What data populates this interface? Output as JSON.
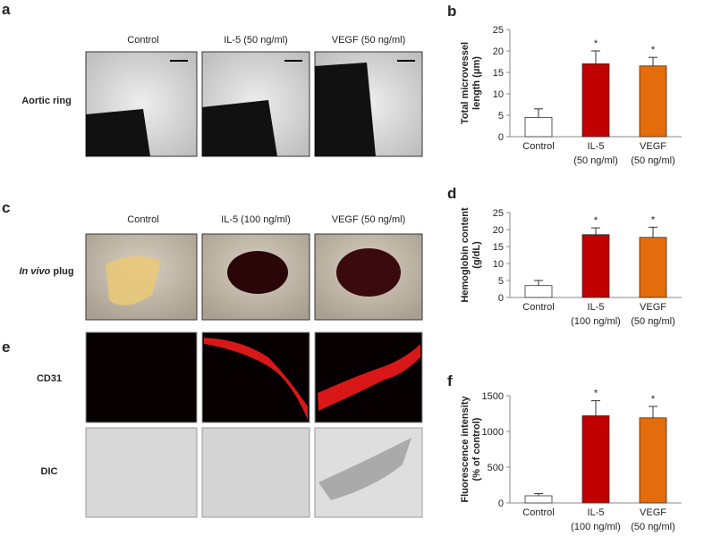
{
  "panels": {
    "a": {
      "label": "a",
      "columns": [
        "Control",
        "IL-5 (50 ng/ml)",
        "VEGF (50 ng/ml)"
      ],
      "row_label": "Aortic ring"
    },
    "c": {
      "label": "c",
      "columns": [
        "Control",
        "IL-5 (100 ng/ml)",
        "VEGF (50 ng/ml)"
      ],
      "row_label": {
        "italic": "In vivo",
        "rest": "plug"
      }
    },
    "e": {
      "label": "e",
      "rows": [
        "CD31",
        "DIC"
      ]
    }
  },
  "charts": [
    {
      "label": "b",
      "type": "bar",
      "ylabel": [
        "Total microvessel",
        "length (μm)"
      ],
      "categories": [
        [
          "Control"
        ],
        [
          "IL-5",
          "(50 ng/ml)"
        ],
        [
          "VEGF",
          "(50 ng/ml)"
        ]
      ],
      "values": [
        4.5,
        17,
        16.5
      ],
      "errors": [
        2,
        3,
        2
      ],
      "stars": [
        null,
        "*",
        "*"
      ],
      "colors": [
        "#ffffff",
        "#c00000",
        "#e46c0a"
      ],
      "ylim": [
        0,
        25
      ],
      "yticks": [
        0,
        5,
        10,
        15,
        20,
        25
      ]
    },
    {
      "label": "d",
      "type": "bar",
      "ylabel": [
        "Hemoglobin content",
        "(g/dL)"
      ],
      "categories": [
        [
          "Control"
        ],
        [
          "IL-5",
          "(100 ng/ml)"
        ],
        [
          "VEGF",
          "(50 ng/ml)"
        ]
      ],
      "values": [
        3.5,
        18.5,
        17.7
      ],
      "errors": [
        1.5,
        2,
        3
      ],
      "stars": [
        null,
        "*",
        "*"
      ],
      "colors": [
        "#ffffff",
        "#c00000",
        "#e46c0a"
      ],
      "ylim": [
        0,
        25
      ],
      "yticks": [
        0,
        5,
        10,
        15,
        20,
        25
      ]
    },
    {
      "label": "f",
      "type": "bar",
      "ylabel": [
        "Fluorescence intensity",
        "(% of control)"
      ],
      "categories": [
        [
          "Control"
        ],
        [
          "IL-5",
          "(100 ng/ml)"
        ],
        [
          "VEGF",
          "(50 ng/ml)"
        ]
      ],
      "values": [
        100,
        1220,
        1190
      ],
      "errors": [
        30,
        210,
        160
      ],
      "stars": [
        null,
        "*",
        "*"
      ],
      "colors": [
        "#ffffff",
        "#c00000",
        "#e46c0a"
      ],
      "ylim": [
        0,
        1500
      ],
      "yticks": [
        0,
        500,
        1000,
        1500
      ]
    }
  ]
}
